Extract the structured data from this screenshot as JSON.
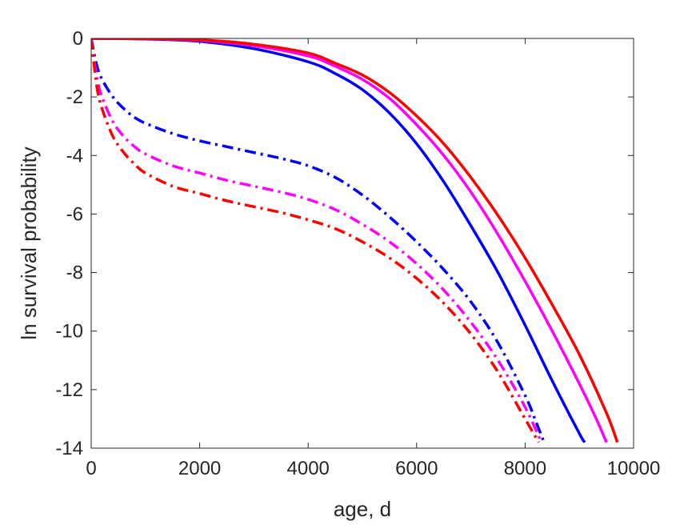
{
  "chart_data": {
    "type": "line",
    "title": "",
    "xlabel": "age, d",
    "ylabel": "ln survival probability",
    "xlim": [
      0,
      10000
    ],
    "ylim": [
      -14,
      0
    ],
    "xticks": [
      0,
      2000,
      4000,
      6000,
      8000,
      10000
    ],
    "yticks": [
      0,
      -2,
      -4,
      -6,
      -8,
      -10,
      -12,
      -14
    ],
    "xtick_labels": [
      "0",
      "2000",
      "4000",
      "6000",
      "8000",
      "10000"
    ],
    "ytick_labels": [
      "0",
      "-2",
      "-4",
      "-6",
      "-8",
      "-10",
      "-12",
      "-14"
    ],
    "grid": false,
    "legend": "none",
    "series": [
      {
        "color": "#0000ff",
        "style": "solid",
        "x": [
          0,
          1000,
          2000,
          3000,
          4000,
          4500,
          5000,
          5500,
          6000,
          6500,
          7000,
          7500,
          8000,
          8500,
          9000,
          9100
        ],
        "y": [
          0,
          -0.02,
          -0.1,
          -0.35,
          -0.8,
          -1.2,
          -1.75,
          -2.55,
          -3.6,
          -4.9,
          -6.4,
          -8.0,
          -9.8,
          -11.7,
          -13.5,
          -13.8
        ]
      },
      {
        "color": "#ff00ff",
        "style": "solid",
        "x": [
          0,
          1000,
          2000,
          3000,
          4000,
          4500,
          5000,
          5500,
          6000,
          6500,
          7000,
          7500,
          8000,
          8500,
          9000,
          9300,
          9500
        ],
        "y": [
          0,
          -0.01,
          -0.07,
          -0.25,
          -0.6,
          -0.95,
          -1.4,
          -2.05,
          -2.95,
          -4.0,
          -5.25,
          -6.7,
          -8.3,
          -10.0,
          -11.8,
          -12.95,
          -13.8
        ]
      },
      {
        "color": "#ff0000",
        "style": "solid",
        "x": [
          0,
          1000,
          2000,
          3000,
          4000,
          4500,
          5000,
          5500,
          6000,
          6500,
          7000,
          7500,
          8000,
          8500,
          9000,
          9500,
          9700
        ],
        "y": [
          0,
          -0.01,
          -0.05,
          -0.2,
          -0.5,
          -0.85,
          -1.25,
          -1.85,
          -2.65,
          -3.6,
          -4.75,
          -6.05,
          -7.5,
          -9.1,
          -10.8,
          -12.8,
          -13.8
        ]
      },
      {
        "color": "#0000ff",
        "style": "dashdot",
        "x": [
          0,
          100,
          200,
          400,
          600,
          800,
          1000,
          1500,
          2000,
          2500,
          3000,
          3500,
          4000,
          4500,
          5000,
          5500,
          6000,
          6500,
          7000,
          7500,
          8000,
          8200,
          8350
        ],
        "y": [
          0,
          -0.9,
          -1.4,
          -2.0,
          -2.4,
          -2.7,
          -2.9,
          -3.25,
          -3.5,
          -3.7,
          -3.9,
          -4.1,
          -4.35,
          -4.75,
          -5.35,
          -6.1,
          -6.95,
          -7.9,
          -9.0,
          -10.4,
          -12.2,
          -13.1,
          -13.8
        ]
      },
      {
        "color": "#ff00ff",
        "style": "dashdot",
        "x": [
          0,
          100,
          200,
          400,
          600,
          800,
          1000,
          1500,
          2000,
          2500,
          3000,
          3500,
          4000,
          4500,
          5000,
          5500,
          6000,
          6500,
          7000,
          7500,
          8000,
          8300
        ],
        "y": [
          0,
          -1.3,
          -2.0,
          -2.85,
          -3.35,
          -3.7,
          -3.95,
          -4.35,
          -4.6,
          -4.85,
          -5.05,
          -5.25,
          -5.5,
          -5.85,
          -6.35,
          -6.95,
          -7.7,
          -8.6,
          -9.7,
          -11.0,
          -12.6,
          -13.8
        ]
      },
      {
        "color": "#ff0000",
        "style": "dashdot",
        "x": [
          0,
          100,
          200,
          400,
          600,
          800,
          1000,
          1500,
          2000,
          2500,
          3000,
          3500,
          4000,
          4500,
          5000,
          5500,
          6000,
          6500,
          7000,
          7500,
          8000,
          8250
        ],
        "y": [
          0,
          -1.6,
          -2.4,
          -3.35,
          -3.9,
          -4.3,
          -4.6,
          -5.05,
          -5.3,
          -5.55,
          -5.75,
          -5.95,
          -6.2,
          -6.5,
          -6.95,
          -7.5,
          -8.2,
          -9.05,
          -10.1,
          -11.4,
          -13.0,
          -13.8
        ]
      }
    ]
  }
}
